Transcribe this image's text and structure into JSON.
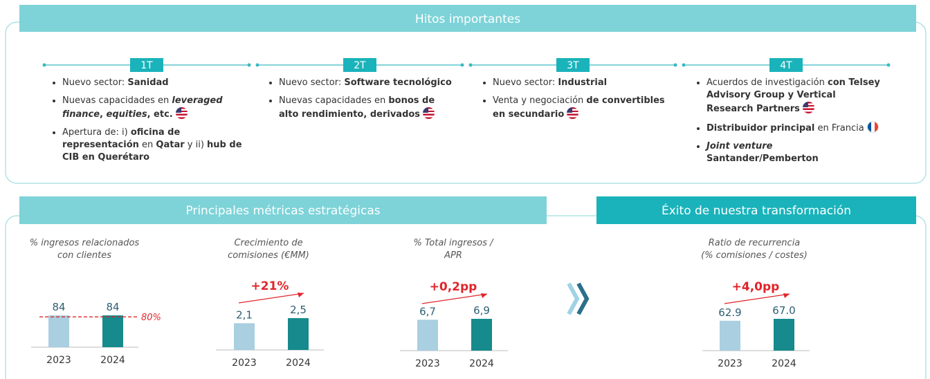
{
  "sections": {
    "milestones": "Hitos importantes",
    "metrics": "Principales métricas estratégicas",
    "transformation": "Éxito de nuestra transformación"
  },
  "timeline": [
    {
      "label": "1T",
      "items": [
        [
          {
            "text": "Nuevo sector: "
          },
          {
            "text": "Sanidad",
            "b": true
          }
        ],
        [
          {
            "text": "Nuevas capacidades en "
          },
          {
            "text": "leveraged finance",
            "b": true,
            "i": true
          },
          {
            "text": ", ",
            "b": true
          },
          {
            "text": "equities",
            "b": true,
            "i": true
          },
          {
            "text": ", etc.",
            "b": true
          },
          {
            "flag": "us"
          }
        ],
        [
          {
            "text": "Apertura de: i) "
          },
          {
            "text": "oficina de representación",
            "b": true
          },
          {
            "text": " en "
          },
          {
            "text": "Qatar",
            "b": true
          },
          {
            "text": " y ii) "
          },
          {
            "text": "hub de CIB en Querétaro",
            "b": true
          }
        ]
      ]
    },
    {
      "label": "2T",
      "items": [
        [
          {
            "text": "Nuevo sector: "
          },
          {
            "text": "Software tecnológico",
            "b": true
          }
        ],
        [
          {
            "text": "Nuevas capacidades en "
          },
          {
            "text": "bonos de alto rendimiento, derivados",
            "b": true
          },
          {
            "flag": "us"
          }
        ]
      ]
    },
    {
      "label": "3T",
      "items": [
        [
          {
            "text": "Nuevo sector: "
          },
          {
            "text": "Industrial",
            "b": true
          }
        ],
        [
          {
            "text": "Venta y negociación "
          },
          {
            "text": "de convertibles en secundario",
            "b": true
          },
          {
            "flag": "us"
          }
        ]
      ]
    },
    {
      "label": "4T",
      "items": [
        [
          {
            "text": "Acuerdos de investigación "
          },
          {
            "text": "con Telsey Advisory Group y Vertical Research Partners",
            "b": true
          },
          {
            "flag": "us"
          }
        ],
        [
          {
            "text": "Distribuidor principal",
            "b": true
          },
          {
            "text": " en Francia"
          },
          {
            "flag": "fr"
          }
        ],
        [
          {
            "text": "Joint venture",
            "b": true,
            "i": true
          },
          {
            "text": " Santander/Pemberton",
            "b": true
          }
        ]
      ]
    }
  ],
  "chart_data": [
    {
      "type": "bar",
      "title": [
        "% ingresos relacionados",
        "con clientes"
      ],
      "categories": [
        "2023",
        "2024"
      ],
      "values": [
        84,
        84
      ],
      "colors": [
        "#a9cfe0",
        "#168a8c"
      ],
      "reference": {
        "value": 80,
        "label": "80%"
      }
    },
    {
      "type": "bar",
      "title": [
        "Crecimiento de",
        "comisiones (€MM)"
      ],
      "categories": [
        "2023",
        "2024"
      ],
      "values": [
        2.1,
        2.5
      ],
      "value_labels": [
        "2,1",
        "2,5"
      ],
      "colors": [
        "#a9cfe0",
        "#168a8c"
      ],
      "annotation": "+21%"
    },
    {
      "type": "bar",
      "title": [
        "% Total ingresos /",
        "APR"
      ],
      "categories": [
        "2023",
        "2024"
      ],
      "values": [
        6.7,
        6.9
      ],
      "value_labels": [
        "6,7",
        "6,9"
      ],
      "colors": [
        "#a9cfe0",
        "#168a8c"
      ],
      "annotation": "+0,2pp"
    },
    {
      "type": "bar",
      "title": [
        "Ratio de recurrencia",
        "(% comisiones / costes)"
      ],
      "categories": [
        "2023",
        "2024"
      ],
      "values": [
        62.9,
        67.0
      ],
      "value_labels": [
        "62.9",
        "67.0"
      ],
      "colors": [
        "#a9cfe0",
        "#168a8c"
      ],
      "annotation": "+4,0pp"
    }
  ]
}
